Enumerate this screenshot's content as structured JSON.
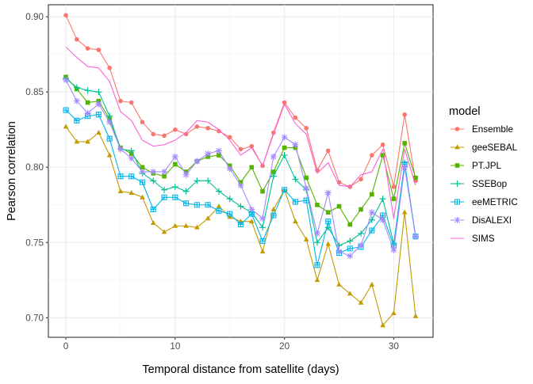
{
  "chart_data": {
    "type": "line",
    "title": "",
    "xlabel": "Temporal distance from satellite (days)",
    "ylabel": "Pearson correlation",
    "xlim": [
      -1.6,
      33.6
    ],
    "ylim": [
      0.687,
      0.908
    ],
    "x_ticks": [
      0,
      10,
      20,
      30
    ],
    "x_tick_labels": [
      "0",
      "10",
      "20",
      "30"
    ],
    "y_ticks": [
      0.7,
      0.75,
      0.8,
      0.85,
      0.9
    ],
    "y_tick_labels": [
      "0.70",
      "0.75",
      "0.80",
      "0.85",
      "0.90"
    ],
    "grid": true,
    "legend_title": "model",
    "legend_position": "right",
    "x": [
      0,
      1,
      2,
      3,
      4,
      5,
      6,
      7,
      8,
      9,
      10,
      11,
      12,
      13,
      14,
      15,
      16,
      17,
      18,
      19,
      20,
      21,
      22,
      23,
      24,
      25,
      26,
      27,
      28,
      29,
      30,
      31,
      32
    ],
    "series": [
      {
        "name": "Ensemble",
        "color": "#F8766D",
        "marker": "circle",
        "values": [
          0.901,
          0.885,
          0.879,
          0.878,
          0.866,
          0.844,
          0.843,
          0.83,
          0.822,
          0.821,
          0.825,
          0.822,
          0.827,
          0.826,
          0.824,
          0.82,
          0.812,
          0.814,
          0.801,
          0.823,
          0.843,
          0.833,
          0.826,
          0.798,
          0.811,
          0.79,
          0.787,
          0.792,
          0.808,
          0.815,
          0.787,
          0.835,
          0.791
        ]
      },
      {
        "name": "geeSEBAL",
        "color": "#C49A00",
        "marker": "triangle",
        "values": [
          0.827,
          0.817,
          0.817,
          0.823,
          0.808,
          0.784,
          0.783,
          0.78,
          0.763,
          0.757,
          0.761,
          0.761,
          0.76,
          0.766,
          0.774,
          0.767,
          0.764,
          0.764,
          0.744,
          0.772,
          0.785,
          0.764,
          0.752,
          0.725,
          0.749,
          0.722,
          0.716,
          0.71,
          0.722,
          0.695,
          0.703,
          0.77,
          0.701
        ]
      },
      {
        "name": "PT.JPL",
        "color": "#53B400",
        "marker": "square",
        "values": [
          0.86,
          0.852,
          0.843,
          0.844,
          0.832,
          0.813,
          0.809,
          0.8,
          0.796,
          0.794,
          0.802,
          0.797,
          0.804,
          0.807,
          0.808,
          0.801,
          0.79,
          0.8,
          0.784,
          0.797,
          0.813,
          0.813,
          0.793,
          0.775,
          0.77,
          0.774,
          0.762,
          0.772,
          0.782,
          0.808,
          0.779,
          0.816,
          0.793
        ]
      },
      {
        "name": "SSEBop",
        "color": "#00C094",
        "marker": "plus",
        "values": [
          0.859,
          0.853,
          0.851,
          0.85,
          0.834,
          0.812,
          0.811,
          0.796,
          0.791,
          0.785,
          0.787,
          0.784,
          0.791,
          0.791,
          0.784,
          0.779,
          0.774,
          0.77,
          0.76,
          0.794,
          0.808,
          0.792,
          0.785,
          0.75,
          0.76,
          0.748,
          0.751,
          0.756,
          0.765,
          0.779,
          0.749,
          0.803,
          0.754
        ]
      },
      {
        "name": "eeMETRIC",
        "color": "#00B6EB",
        "marker": "square-cross",
        "values": [
          0.838,
          0.831,
          0.834,
          0.835,
          0.819,
          0.794,
          0.794,
          0.79,
          0.772,
          0.78,
          0.78,
          0.776,
          0.775,
          0.775,
          0.771,
          0.769,
          0.762,
          0.769,
          0.751,
          0.768,
          0.785,
          0.777,
          0.778,
          0.735,
          0.764,
          0.743,
          0.746,
          0.747,
          0.758,
          0.768,
          0.748,
          0.802,
          0.754
        ]
      },
      {
        "name": "DisALEXI",
        "color": "#A58AFF",
        "marker": "star",
        "values": [
          0.858,
          0.844,
          0.836,
          0.842,
          0.83,
          0.812,
          0.806,
          0.797,
          0.797,
          0.797,
          0.807,
          0.795,
          0.804,
          0.809,
          0.811,
          0.799,
          0.788,
          0.772,
          0.766,
          0.807,
          0.82,
          0.815,
          0.786,
          0.756,
          0.783,
          0.744,
          0.741,
          0.748,
          0.77,
          0.765,
          0.745,
          0.8,
          0.754
        ]
      },
      {
        "name": "SIMS",
        "color": "#FB61D7",
        "marker": "none",
        "values": [
          0.88,
          0.873,
          0.867,
          0.866,
          0.857,
          0.837,
          0.831,
          0.818,
          0.814,
          0.815,
          0.818,
          0.823,
          0.831,
          0.83,
          0.825,
          0.818,
          0.808,
          0.813,
          0.801,
          0.822,
          0.842,
          0.829,
          0.822,
          0.796,
          0.803,
          0.788,
          0.787,
          0.795,
          0.797,
          0.812,
          0.766,
          0.812,
          0.788
        ]
      }
    ]
  }
}
